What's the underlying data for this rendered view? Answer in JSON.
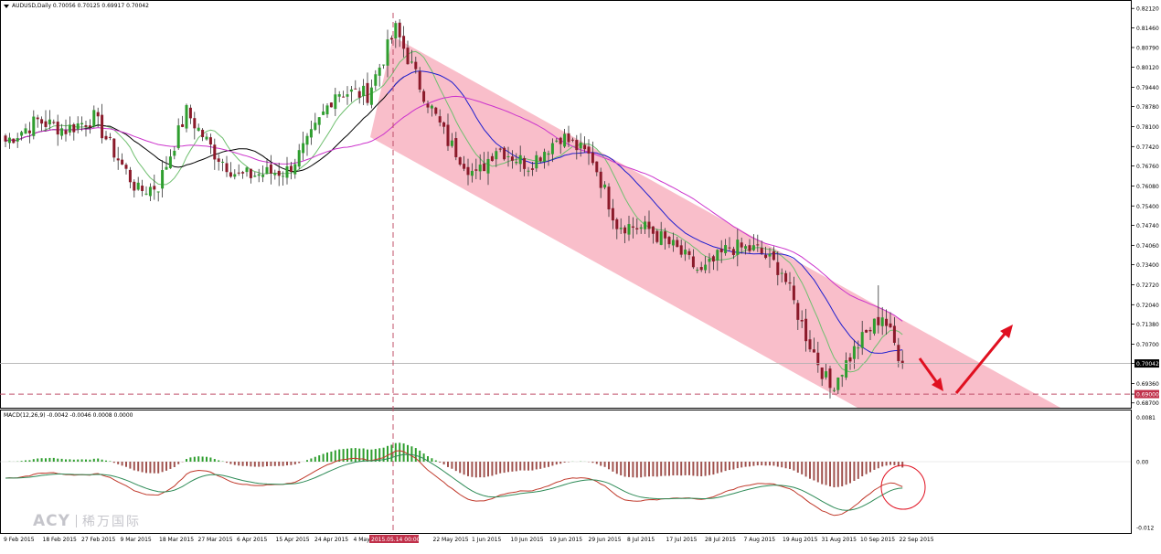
{
  "header": {
    "symbol_line": "AUDUSD,Daily  0.70056 0.70125 0.69917 0.70042"
  },
  "macd_header": "MACD(12,26,9) -0.0042 -0.0046 0.0008 0.0000",
  "watermark": {
    "brand": "ACY",
    "chinese": "稀万国际"
  },
  "colors": {
    "bull_candle": "#2f9e2f",
    "bear_candle": "#8b1a2a",
    "channel": "#f7a8b8",
    "ma_fast": "#6fbf6f",
    "ma_mid": "#1f1fcf",
    "ma_slow": "#cc33cc",
    "ma_black": "#000000",
    "macd_hist_pos": "#2f9e2f",
    "macd_hist_neg": "#a0524e",
    "macd_line": "#c0392b",
    "signal_line": "#2e8b57",
    "support_line": "#c0506a",
    "arrow": "#e01020"
  },
  "chart_data": [
    {
      "type": "candlestick",
      "title": "AUDUSD,Daily",
      "y_ticks": [
        "0.82120",
        "0.81460",
        "0.80790",
        "0.80120",
        "0.79440",
        "0.78780",
        "0.78100",
        "0.77420",
        "0.76760",
        "0.76080",
        "0.75400",
        "0.74740",
        "0.74060",
        "0.73400",
        "0.72720",
        "0.72040",
        "0.71380",
        "0.70700",
        "0.70042",
        "0.69360",
        "0.69000",
        "0.68700"
      ],
      "x_ticks": [
        "9 Feb 2015",
        "18 Feb 2015",
        "27 Feb 2015",
        "9 Mar 2015",
        "18 Mar 2015",
        "27 Mar 2015",
        "6 Apr 2015",
        "15 Apr 2015",
        "24 Apr 2015",
        "4 May",
        "2015.05.14 00:00",
        "22 May 2015",
        "1 Jun 2015",
        "10 Jun 2015",
        "19 Jun 2015",
        "29 Jun 2015",
        "8 Jul 2015",
        "17 Jul 2015",
        "28 Jul 2015",
        "7 Aug 2015",
        "19 Aug 2015",
        "31 Aug 2015",
        "10 Sep 2015",
        "22 Sep 2015"
      ],
      "ylim": [
        0.6866,
        0.8222
      ],
      "current_price": "0.70042",
      "support_level": "0.69000",
      "vertical_marker": "2015.05.14 00:00",
      "annotations": [
        "descending channel",
        "down arrow to support",
        "up arrow breakout"
      ],
      "anchors": [
        {
          "i": 0,
          "c": 0.776
        },
        {
          "i": 8,
          "c": 0.783
        },
        {
          "i": 15,
          "c": 0.78
        },
        {
          "i": 22,
          "c": 0.784
        },
        {
          "i": 28,
          "c": 0.77
        },
        {
          "i": 33,
          "c": 0.759
        },
        {
          "i": 38,
          "c": 0.761
        },
        {
          "i": 45,
          "c": 0.786
        },
        {
          "i": 52,
          "c": 0.772
        },
        {
          "i": 58,
          "c": 0.764
        },
        {
          "i": 64,
          "c": 0.765
        },
        {
          "i": 70,
          "c": 0.766
        },
        {
          "i": 75,
          "c": 0.775
        },
        {
          "i": 82,
          "c": 0.793
        },
        {
          "i": 90,
          "c": 0.792
        },
        {
          "i": 97,
          "c": 0.814
        },
        {
          "i": 103,
          "c": 0.795
        },
        {
          "i": 110,
          "c": 0.776
        },
        {
          "i": 117,
          "c": 0.764
        },
        {
          "i": 122,
          "c": 0.774
        },
        {
          "i": 130,
          "c": 0.768
        },
        {
          "i": 138,
          "c": 0.778
        },
        {
          "i": 146,
          "c": 0.77
        },
        {
          "i": 152,
          "c": 0.748
        },
        {
          "i": 160,
          "c": 0.746
        },
        {
          "i": 167,
          "c": 0.739
        },
        {
          "i": 173,
          "c": 0.731
        },
        {
          "i": 180,
          "c": 0.74
        },
        {
          "i": 187,
          "c": 0.739
        },
        {
          "i": 193,
          "c": 0.732
        },
        {
          "i": 199,
          "c": 0.71
        },
        {
          "i": 205,
          "c": 0.692
        },
        {
          "i": 212,
          "c": 0.707
        },
        {
          "i": 218,
          "c": 0.717
        },
        {
          "i": 223,
          "c": 0.7004
        }
      ],
      "series": [
        {
          "name": "MA fast"
        },
        {
          "name": "MA mid"
        },
        {
          "name": "MA slow"
        }
      ]
    },
    {
      "type": "bar",
      "title": "MACD(12,26,9)",
      "y_ticks": [
        "0.0081",
        "0.00",
        "-0.012"
      ],
      "ylim": [
        -0.0125,
        0.0085
      ]
    }
  ]
}
